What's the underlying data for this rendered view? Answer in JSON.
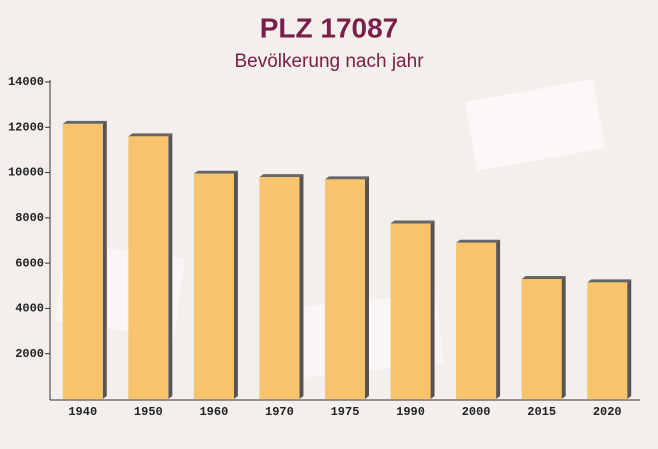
{
  "chart_data": {
    "type": "bar",
    "title": "PLZ 17087",
    "subtitle": "Bevölkerung nach jahr",
    "categories": [
      "1940",
      "1950",
      "1960",
      "1970",
      "1975",
      "1990",
      "2000",
      "2015",
      "2020"
    ],
    "values": [
      12150,
      11600,
      9950,
      9800,
      9700,
      7750,
      6900,
      5300,
      5150
    ],
    "color": "#f7bf5c",
    "ylim": [
      0,
      14000
    ],
    "yticks": [
      2000,
      4000,
      6000,
      8000,
      10000,
      12000,
      14000
    ]
  }
}
